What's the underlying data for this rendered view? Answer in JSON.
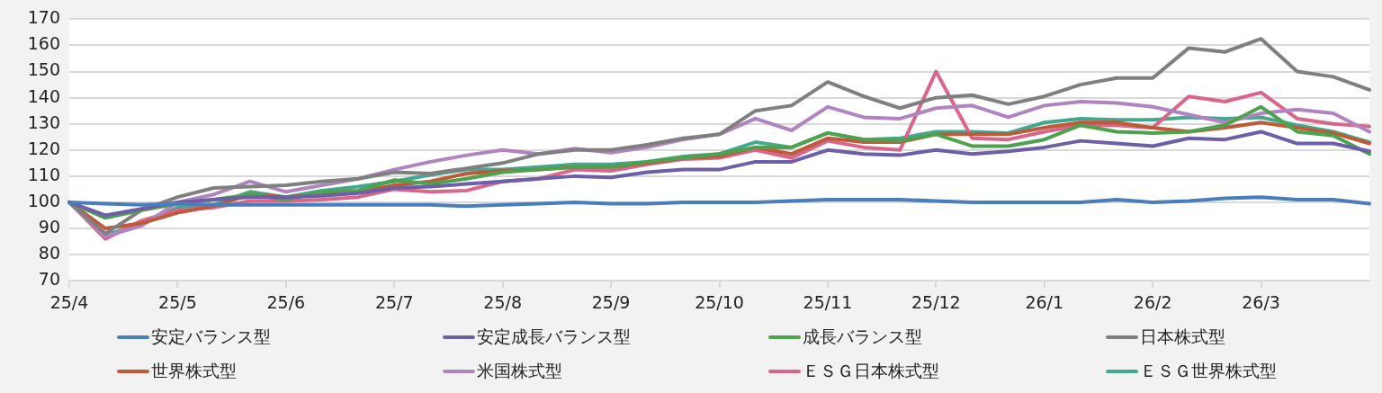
{
  "chart_data": {
    "type": "line",
    "categories": [
      "25/4",
      null,
      null,
      "25/5",
      null,
      null,
      "25/6",
      null,
      null,
      "25/7",
      null,
      null,
      "25/8",
      null,
      null,
      "25/9",
      null,
      null,
      "25/10",
      null,
      null,
      "25/11",
      null,
      null,
      "25/12",
      null,
      null,
      "26/1",
      null,
      null,
      "26/2",
      null,
      null,
      "26/3",
      null,
      null,
      null
    ],
    "series": [
      {
        "name": "安定バランス型",
        "color": "#4a7ebb",
        "values": [
          100,
          99.5,
          99,
          99.5,
          99,
          99,
          99,
          99,
          99,
          99,
          99,
          98.5,
          99,
          99.5,
          100,
          99.5,
          99.5,
          100,
          100,
          100,
          100.5,
          101,
          101,
          101,
          100.5,
          100,
          100,
          100,
          100,
          101,
          100,
          100.5,
          101.5,
          102,
          101,
          101,
          99.5
        ]
      },
      {
        "name": "安定成長バランス型",
        "color": "#6c5fa7",
        "values": [
          100,
          95,
          97.5,
          100,
          101,
          102,
          102,
          102.5,
          103.5,
          105.5,
          106,
          107,
          108,
          109,
          110,
          109.5,
          111.5,
          112.5,
          112.5,
          115.5,
          115.5,
          120,
          118.5,
          118,
          120,
          118.5,
          119.5,
          121,
          123.5,
          122.5,
          121.5,
          124.5,
          124,
          127,
          122.5,
          122.5,
          119.5
        ]
      },
      {
        "name": "成長バランス型",
        "color": "#4ea24e",
        "values": [
          100,
          94,
          97,
          99.5,
          101,
          103,
          101,
          104,
          104.5,
          108.5,
          107,
          109,
          111.5,
          112.5,
          113.5,
          113.5,
          115.5,
          117,
          118.5,
          121,
          121,
          126.5,
          124,
          123.5,
          126,
          121.5,
          121.5,
          124,
          129.5,
          127,
          126.5,
          127,
          129.5,
          136.5,
          127,
          125.5,
          118.5
        ]
      },
      {
        "name": "日本株式型",
        "color": "#7f7f7f",
        "values": [
          100,
          88,
          97,
          102,
          105.5,
          106,
          106.5,
          108,
          109,
          111.5,
          111,
          113,
          115,
          118.5,
          120,
          120,
          122,
          124.5,
          126,
          135,
          137,
          146,
          140.5,
          136,
          140,
          141,
          137.5,
          140.5,
          145,
          147.5,
          147.5,
          159,
          157.5,
          162.5,
          150,
          148,
          143
        ]
      },
      {
        "name": "世界株式型",
        "color": "#be5a3a",
        "values": [
          100,
          90,
          92,
          96,
          98.5,
          103,
          102,
          103,
          104,
          106.5,
          108,
          111,
          112,
          112.5,
          113.5,
          113.5,
          115,
          117,
          117.5,
          121,
          118.5,
          124.5,
          123,
          123,
          126,
          126,
          126,
          128.5,
          130.5,
          130.5,
          128.5,
          127,
          128.5,
          130.5,
          128.5,
          126.5,
          122.5
        ]
      },
      {
        "name": "米国株式型",
        "color": "#b084c0",
        "values": [
          100,
          87,
          91,
          100,
          103,
          108,
          104,
          106.5,
          109,
          112.5,
          115.5,
          118,
          120,
          118.5,
          120.5,
          119,
          121,
          124,
          126,
          132,
          127.5,
          136.5,
          132.5,
          132,
          136,
          137,
          132.5,
          137,
          138.5,
          138,
          136.5,
          133.5,
          130.5,
          134,
          135.5,
          134,
          127
        ]
      },
      {
        "name": "ＥＳＧ日本株式型",
        "color": "#d9668a",
        "values": [
          100,
          86,
          93,
          97,
          98,
          100.5,
          100.5,
          101,
          102,
          105,
          104,
          104.5,
          108,
          109,
          112.5,
          112,
          114.5,
          116.5,
          117,
          120,
          117,
          123.5,
          121,
          120,
          150,
          124.5,
          124,
          127,
          129.5,
          129.5,
          128.5,
          140.5,
          138.5,
          142,
          132,
          130,
          129
        ]
      },
      {
        "name": "ＥＳＧ世界株式型",
        "color": "#43a88e",
        "values": [
          100,
          87.5,
          91.5,
          98,
          99,
          104,
          102,
          104.5,
          106,
          108,
          110.5,
          112.5,
          112.5,
          113.5,
          114.5,
          114.5,
          115.5,
          117.5,
          118.5,
          123,
          121,
          126.5,
          124,
          124.5,
          127,
          127,
          126.5,
          130.5,
          132,
          131.5,
          131.5,
          132.5,
          132,
          132.5,
          129.5,
          127,
          123
        ]
      }
    ],
    "ylim": [
      70,
      170
    ],
    "yticks": [
      70,
      80,
      90,
      100,
      110,
      120,
      130,
      140,
      150,
      160,
      170
    ],
    "grid": "y",
    "legend": "bottom",
    "marker": "none",
    "line_style": "solid"
  }
}
